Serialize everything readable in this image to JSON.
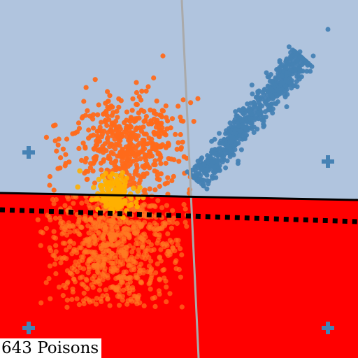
{
  "counter": {
    "text": "643 Poisons"
  },
  "colors": {
    "top_region": "#b0c4de",
    "bottom_region": "#ff0000",
    "clean_points": "#4682b4",
    "poison_points": "#ff6a1a",
    "poison_core": "#ffb000",
    "boundary_line": "#000000",
    "dotted_boundary": "#000000",
    "vertical_line": "#aaaaaa",
    "markers": "#4682b4"
  },
  "icons": {
    "corner_marker": "plus-icon"
  }
}
